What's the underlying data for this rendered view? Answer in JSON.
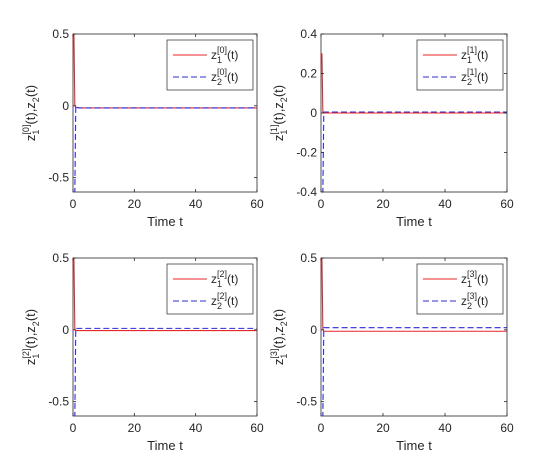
{
  "chart_data": [
    {
      "type": "line",
      "xlabel": "Time t",
      "ylabel": {
        "base1": "z",
        "sub1": "1",
        "sup": "[0]",
        "mid": "(t),z",
        "sub2": "2",
        "end": "(t)"
      },
      "xlim": [
        0,
        60
      ],
      "ylim": [
        -0.6,
        0.5
      ],
      "xticks": [
        "0",
        "20",
        "40",
        "60"
      ],
      "yticks": [
        "0.5",
        "0",
        "-0.5"
      ],
      "legend_position": "top-right",
      "series": [
        {
          "name": {
            "base": "z",
            "sub": "1",
            "sup": "[0]",
            "end": "(t)"
          },
          "color": "#e8262a",
          "style": "solid",
          "x": [
            0,
            0.3,
            0.6,
            1,
            2,
            4,
            10,
            20,
            40,
            60
          ],
          "y": [
            0.5,
            0.5,
            0,
            -0.01,
            -0.015,
            -0.015,
            -0.015,
            -0.015,
            -0.015,
            -0.015
          ]
        },
        {
          "name": {
            "base": "z",
            "sub": "2",
            "sup": "[0]",
            "end": "(t)"
          },
          "color": "#2b2bd6",
          "style": "dashed",
          "x": [
            0,
            0.6,
            0.9,
            1.3,
            2,
            4,
            10,
            20,
            40,
            60
          ],
          "y": [
            -0.6,
            -0.6,
            0,
            -0.012,
            -0.015,
            -0.015,
            -0.015,
            -0.015,
            -0.015,
            -0.015
          ]
        }
      ]
    },
    {
      "type": "line",
      "xlabel": "Time t",
      "ylabel": {
        "base1": "z",
        "sub1": "1",
        "sup": "[1]",
        "mid": "(t),z",
        "sub2": "2",
        "end": "(t)"
      },
      "xlim": [
        0,
        60
      ],
      "ylim": [
        -0.4,
        0.4
      ],
      "xticks": [
        "0",
        "20",
        "40",
        "60"
      ],
      "yticks": [
        "0.4",
        "0.2",
        "0",
        "-0.2",
        "-0.4"
      ],
      "legend_position": "top-right",
      "series": [
        {
          "name": {
            "base": "z",
            "sub": "1",
            "sup": "[1]",
            "end": "(t)"
          },
          "color": "#e8262a",
          "style": "solid",
          "x": [
            0,
            0.3,
            0.6,
            1,
            2,
            4,
            10,
            20,
            40,
            60
          ],
          "y": [
            0.3,
            0.3,
            0,
            0,
            0,
            0,
            0,
            0,
            0,
            0
          ]
        },
        {
          "name": {
            "base": "z",
            "sub": "2",
            "sup": "[1]",
            "end": "(t)"
          },
          "color": "#2b2bd6",
          "style": "dashed",
          "x": [
            0,
            0.6,
            0.9,
            1.3,
            2,
            4,
            10,
            20,
            40,
            60
          ],
          "y": [
            -0.4,
            -0.4,
            0.005,
            0.005,
            0.005,
            0.005,
            0.005,
            0.005,
            0.005,
            0.005
          ]
        }
      ]
    },
    {
      "type": "line",
      "xlabel": "Time t",
      "ylabel": {
        "base1": "z",
        "sub1": "1",
        "sup": "[2]",
        "mid": "(t),z",
        "sub2": "2",
        "end": "(t)"
      },
      "xlim": [
        0,
        60
      ],
      "ylim": [
        -0.6,
        0.5
      ],
      "xticks": [
        "0",
        "20",
        "40",
        "60"
      ],
      "yticks": [
        "0.5",
        "0",
        "-0.5"
      ],
      "legend_position": "top-right",
      "series": [
        {
          "name": {
            "base": "z",
            "sub": "1",
            "sup": "[2]",
            "end": "(t)"
          },
          "color": "#e8262a",
          "style": "solid",
          "x": [
            0,
            0.3,
            0.6,
            1,
            2,
            4,
            10,
            20,
            40,
            60
          ],
          "y": [
            0.5,
            0.5,
            0,
            -0.005,
            -0.005,
            -0.005,
            -0.005,
            -0.005,
            -0.005,
            -0.005
          ]
        },
        {
          "name": {
            "base": "z",
            "sub": "2",
            "sup": "[2]",
            "end": "(t)"
          },
          "color": "#2b2bd6",
          "style": "dashed",
          "x": [
            0,
            0.6,
            0.9,
            1.3,
            2,
            4,
            10,
            20,
            40,
            60
          ],
          "y": [
            -0.6,
            -0.6,
            0.01,
            0.01,
            0.01,
            0.01,
            0.01,
            0.01,
            0.01,
            0.01
          ]
        }
      ]
    },
    {
      "type": "line",
      "xlabel": "Time t",
      "ylabel": {
        "base1": "z",
        "sub1": "1",
        "sup": "[3]",
        "mid": "(t),z",
        "sub2": "2",
        "end": "(t)"
      },
      "xlim": [
        0,
        60
      ],
      "ylim": [
        -0.6,
        0.5
      ],
      "xticks": [
        "0",
        "20",
        "40",
        "60"
      ],
      "yticks": [
        "0.5",
        "0",
        "-0.5"
      ],
      "legend_position": "top-right",
      "series": [
        {
          "name": {
            "base": "z",
            "sub": "1",
            "sup": "[3]",
            "end": "(t)"
          },
          "color": "#e8262a",
          "style": "solid",
          "x": [
            0,
            0.3,
            0.6,
            1,
            2,
            4,
            10,
            20,
            40,
            60
          ],
          "y": [
            0.5,
            0.5,
            0,
            -0.01,
            -0.01,
            -0.01,
            -0.01,
            -0.01,
            -0.01,
            -0.01
          ]
        },
        {
          "name": {
            "base": "z",
            "sub": "2",
            "sup": "[3]",
            "end": "(t)"
          },
          "color": "#2b2bd6",
          "style": "dashed",
          "x": [
            0,
            0.6,
            0.9,
            1.3,
            2,
            4,
            10,
            20,
            40,
            60
          ],
          "y": [
            -0.6,
            -0.6,
            0.015,
            0.015,
            0.015,
            0.015,
            0.015,
            0.015,
            0.015,
            0.015
          ]
        }
      ]
    }
  ]
}
